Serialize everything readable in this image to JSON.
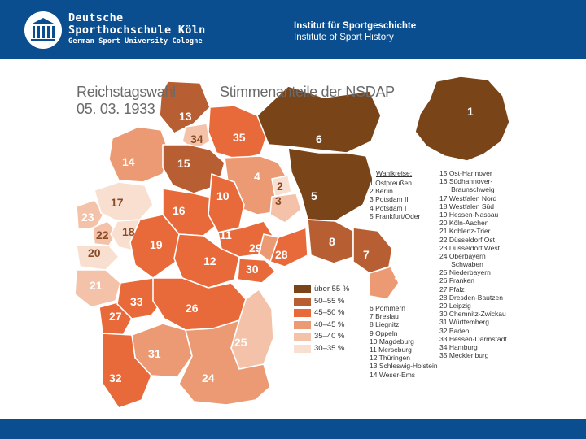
{
  "header": {
    "university_line1": "Deutsche",
    "university_line2": "Sporthochschule Köln",
    "university_line3": "German Sport University Cologne",
    "institute_de": "Institut für Sportgeschichte",
    "institute_en": "Institute of Sport History",
    "logo_icon": "columned-building-icon"
  },
  "map": {
    "title_line1": "Reichstagswahl",
    "title_line2": "05. 03. 1933",
    "title_right": "Stimmenanteile der NSDAP",
    "key_heading": "Wahlkreise:",
    "constituencies_col1": [
      "1 Ostpreußen",
      "2 Berlin",
      "3 Potsdam II",
      "4 Potsdam I",
      "5 Frankfurt/Oder"
    ],
    "constituencies_col2": [
      "15 Ost-Hannover",
      "16 Südhannover-",
      "      Braunschweig",
      "17 Westfalen Nord",
      "18 Westfalen Süd",
      "19 Hessen-Nassau",
      "20 Köln-Aachen",
      "21 Koblenz-Trier",
      "22 Düsseldorf Ost",
      "23 Düsseldorf West",
      "24 Oberbayern",
      "      Schwaben",
      "25 Niederbayern",
      "26 Franken",
      "27 Pfalz",
      "28 Dresden-Bautzen",
      "29 Leipzig",
      "30 Chemnitz-Zwickau",
      "31 Württemberg",
      "32 Baden",
      "33 Hessen-Darmstadt",
      "34 Hamburg",
      "35 Mecklenburg"
    ],
    "constituencies_col3": [
      "6 Pommern",
      "7 Breslau",
      "8 Liegnitz",
      "9 Oppeln",
      "10 Magdeburg",
      "11 Merseburg",
      "12 Thüringen",
      "13 Schleswig-Holstein",
      "14 Weser-Ems"
    ],
    "legend": [
      {
        "label": "über 55 %",
        "color": "#7a4419"
      },
      {
        "label": "50–55 %",
        "color": "#b85e33"
      },
      {
        "label": "45–50 %",
        "color": "#e8693a"
      },
      {
        "label": "40–45 %",
        "color": "#eb9a74"
      },
      {
        "label": "35–40 %",
        "color": "#f3c2a8"
      },
      {
        "label": "30–35 %",
        "color": "#f8dfcf"
      }
    ],
    "regions": [
      {
        "id": "1",
        "name": "Ostpreußen",
        "band": "über 55 %"
      },
      {
        "id": "2",
        "name": "Berlin",
        "band": "30–35 %"
      },
      {
        "id": "3",
        "name": "Potsdam II",
        "band": "35–40 %"
      },
      {
        "id": "4",
        "name": "Potsdam I",
        "band": "45–50 %"
      },
      {
        "id": "5",
        "name": "Frankfurt/Oder",
        "band": "über 55 %"
      },
      {
        "id": "6",
        "name": "Pommern",
        "band": "über 55 %"
      },
      {
        "id": "7",
        "name": "Breslau",
        "band": "50–55 %"
      },
      {
        "id": "8",
        "name": "Liegnitz",
        "band": "50–55 %"
      },
      {
        "id": "9",
        "name": "Oppeln",
        "band": "40–45 %"
      },
      {
        "id": "10",
        "name": "Magdeburg",
        "band": "45–50 %"
      },
      {
        "id": "11",
        "name": "Merseburg",
        "band": "45–50 %"
      },
      {
        "id": "12",
        "name": "Thüringen",
        "band": "45–50 %"
      },
      {
        "id": "13",
        "name": "Schleswig-Holstein",
        "band": "50–55 %"
      },
      {
        "id": "14",
        "name": "Weser-Ems",
        "band": "40–45 %"
      },
      {
        "id": "15",
        "name": "Ost-Hannover",
        "band": "50–55 %"
      },
      {
        "id": "16",
        "name": "Südhannover-Braunschweig",
        "band": "45–50 %"
      },
      {
        "id": "17",
        "name": "Westfalen Nord",
        "band": "30–35 %"
      },
      {
        "id": "18",
        "name": "Westfalen Süd",
        "band": "30–35 %"
      },
      {
        "id": "19",
        "name": "Hessen-Nassau",
        "band": "45–50 %"
      },
      {
        "id": "20",
        "name": "Köln-Aachen",
        "band": "30–35 %"
      },
      {
        "id": "21",
        "name": "Koblenz-Trier",
        "band": "35–40 %"
      },
      {
        "id": "22",
        "name": "Düsseldorf Ost",
        "band": "35–40 %"
      },
      {
        "id": "23",
        "name": "Düsseldorf West",
        "band": "35–40 %"
      },
      {
        "id": "24",
        "name": "Oberbayern Schwaben",
        "band": "40–45 %"
      },
      {
        "id": "25",
        "name": "Niederbayern",
        "band": "35–40 %"
      },
      {
        "id": "26",
        "name": "Franken",
        "band": "45–50 %"
      },
      {
        "id": "27",
        "name": "Pfalz",
        "band": "45–50 %"
      },
      {
        "id": "28",
        "name": "Dresden-Bautzen",
        "band": "45–50 %"
      },
      {
        "id": "29",
        "name": "Leipzig",
        "band": "40–45 %"
      },
      {
        "id": "30",
        "name": "Chemnitz-Zwickau",
        "band": "45–50 %"
      },
      {
        "id": "31",
        "name": "Württemberg",
        "band": "40–45 %"
      },
      {
        "id": "32",
        "name": "Baden",
        "band": "45–50 %"
      },
      {
        "id": "33",
        "name": "Hessen-Darmstadt",
        "band": "45–50 %"
      },
      {
        "id": "34",
        "name": "Hamburg",
        "band": "35–40 %"
      },
      {
        "id": "35",
        "name": "Mecklenburg",
        "band": "45–50 %"
      }
    ]
  }
}
